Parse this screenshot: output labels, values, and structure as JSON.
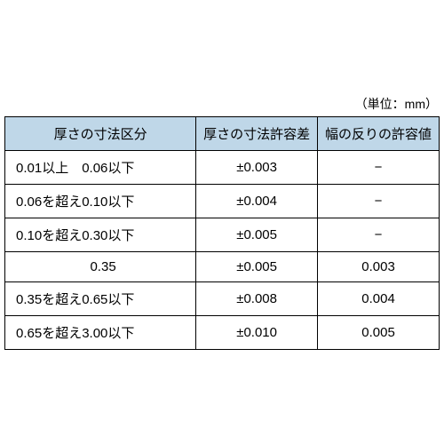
{
  "unit_label": "（単位：mm）",
  "table": {
    "headers": {
      "range": "厚さの寸法区分",
      "tolerance": "厚さの寸法許容差",
      "warp": "幅の反りの許容値"
    },
    "rows": [
      {
        "range": "0.01以上　0.06以下",
        "tolerance": "±0.003",
        "warp": "−",
        "centered": false
      },
      {
        "range": "0.06を超え0.10以下",
        "tolerance": "±0.004",
        "warp": "−",
        "centered": false
      },
      {
        "range": "0.10を超え0.30以下",
        "tolerance": "±0.005",
        "warp": "−",
        "centered": false
      },
      {
        "range": "0.35",
        "tolerance": "±0.005",
        "warp": "0.003",
        "centered": true
      },
      {
        "range": "0.35を超え0.65以下",
        "tolerance": "±0.008",
        "warp": "0.004",
        "centered": false
      },
      {
        "range": "0.65を超え3.00以下",
        "tolerance": "±0.010",
        "warp": "0.005",
        "centered": false
      }
    ]
  },
  "colors": {
    "header_bg": "#bfd7e8",
    "border": "#000000",
    "text": "#000000",
    "background": "#ffffff"
  },
  "typography": {
    "font_family": "Hiragino Sans, Meiryo, sans-serif",
    "header_fontsize": 15,
    "cell_fontsize": 15,
    "unit_fontsize": 14
  }
}
